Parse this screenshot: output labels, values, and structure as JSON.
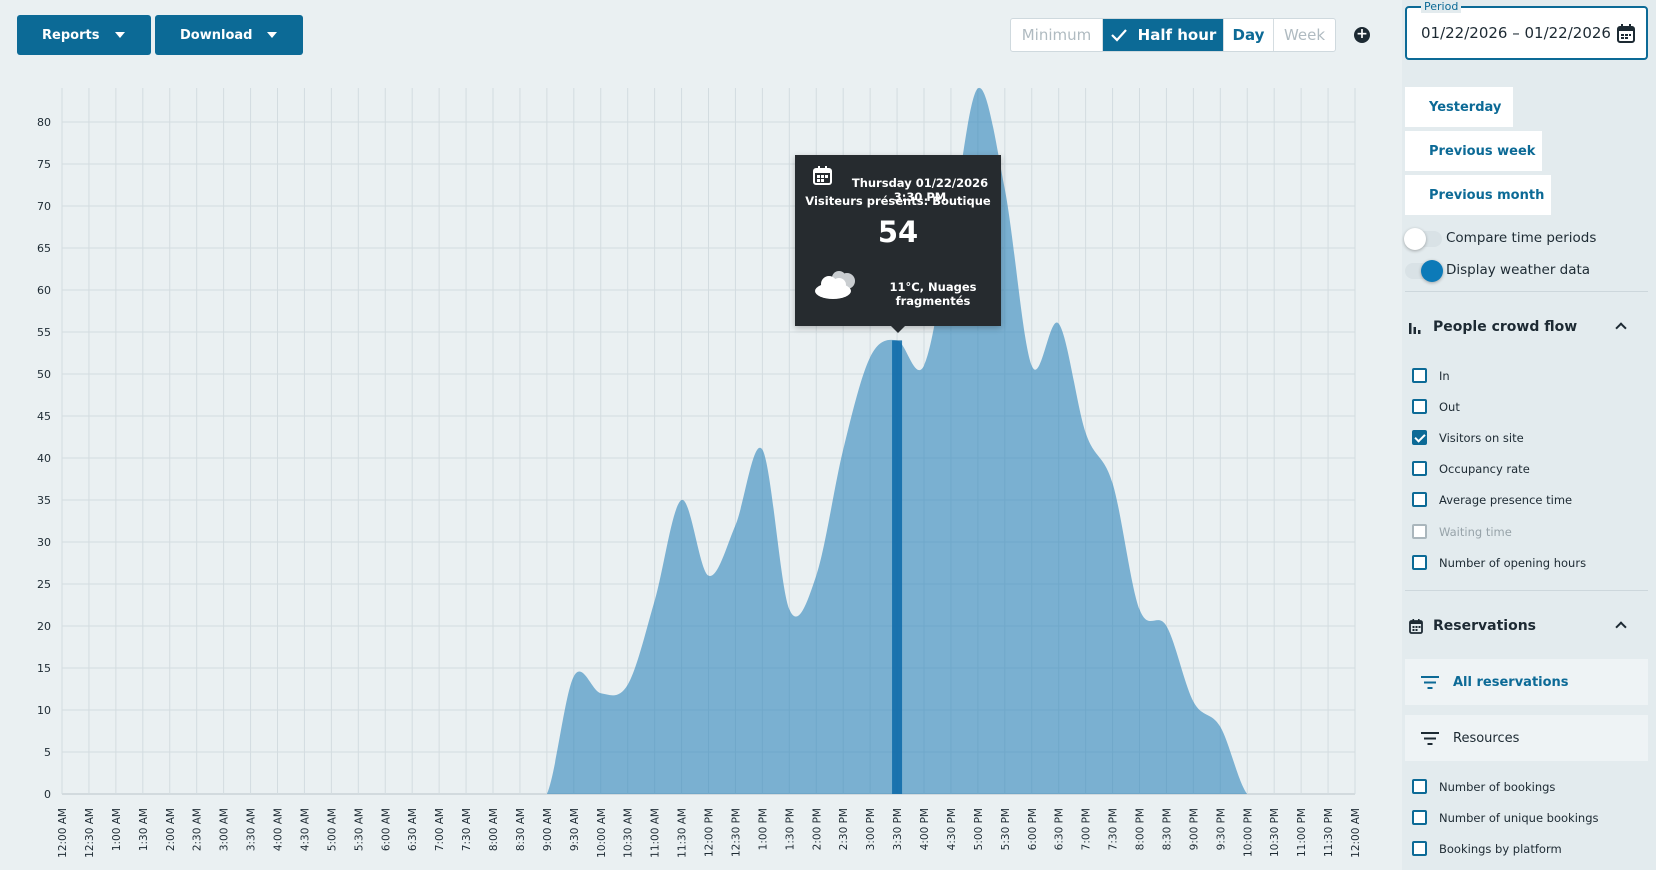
{
  "toolbar": {
    "reports_label": "Reports",
    "download_label": "Download",
    "granularity": [
      "Minimum",
      "Half hour",
      "Day",
      "Week"
    ],
    "granularity_selected": "Half hour",
    "add_icon": "plus-circle-icon"
  },
  "tooltip": {
    "date": "Thursday 01/22/2026 3:30 PM",
    "series": "Visiteurs présents: Boutique",
    "value": "54",
    "weather": "11°C, Nuages fragmentés",
    "date_icon": "calendar-icon",
    "weather_icon": "cloud-icon"
  },
  "sidebar": {
    "period_label": "Period",
    "period_value": "01/22/2026 – 01/22/2026",
    "quick_ranges": [
      "Yesterday",
      "Previous week",
      "Previous month"
    ],
    "toggles": [
      {
        "label": "Compare time periods",
        "on": false
      },
      {
        "label": "Display weather data",
        "on": true
      }
    ],
    "crowd_section": {
      "title": "People crowd flow",
      "options": [
        {
          "label": "In",
          "checked": false,
          "disabled": false
        },
        {
          "label": "Out",
          "checked": false,
          "disabled": false
        },
        {
          "label": "Visitors on site",
          "checked": true,
          "disabled": false
        },
        {
          "label": "Occupancy rate",
          "checked": false,
          "disabled": false
        },
        {
          "label": "Average presence time",
          "checked": false,
          "disabled": false
        },
        {
          "label": "Waiting time",
          "checked": false,
          "disabled": true
        },
        {
          "label": "Number of opening hours",
          "checked": false,
          "disabled": false
        }
      ]
    },
    "reservations_section": {
      "title": "Reservations",
      "filters": [
        {
          "label": "All reservations",
          "active": true
        },
        {
          "label": "Resources",
          "active": false
        }
      ],
      "options": [
        {
          "label": "Number of bookings",
          "checked": false
        },
        {
          "label": "Number of unique bookings",
          "checked": false
        },
        {
          "label": "Bookings by platform",
          "checked": false
        }
      ]
    }
  },
  "chart_data": {
    "type": "area",
    "ylim": [
      0,
      84
    ],
    "yticks": [
      0,
      5,
      10,
      15,
      20,
      25,
      30,
      35,
      40,
      45,
      50,
      55,
      60,
      65,
      70,
      75,
      80
    ],
    "x": [
      "12:00 AM",
      "12:30 AM",
      "1:00 AM",
      "1:30 AM",
      "2:00 AM",
      "2:30 AM",
      "3:00 AM",
      "3:30 AM",
      "4:00 AM",
      "4:30 AM",
      "5:00 AM",
      "5:30 AM",
      "6:00 AM",
      "6:30 AM",
      "7:00 AM",
      "7:30 AM",
      "8:00 AM",
      "8:30 AM",
      "9:00 AM",
      "9:30 AM",
      "10:00 AM",
      "10:30 AM",
      "11:00 AM",
      "11:30 AM",
      "12:00 PM",
      "12:30 PM",
      "1:00 PM",
      "1:30 PM",
      "2:00 PM",
      "2:30 PM",
      "3:00 PM",
      "3:30 PM",
      "4:00 PM",
      "4:30 PM",
      "5:00 PM",
      "5:30 PM",
      "6:00 PM",
      "6:30 PM",
      "7:00 PM",
      "7:30 PM",
      "8:00 PM",
      "8:30 PM",
      "9:00 PM",
      "9:30 PM",
      "10:00 PM",
      "10:30 PM",
      "11:00 PM",
      "11:30 PM",
      "12:00 AM"
    ],
    "values": [
      0,
      0,
      0,
      0,
      0,
      0,
      0,
      0,
      0,
      0,
      0,
      0,
      0,
      0,
      0,
      0,
      0,
      0,
      0,
      14,
      12,
      13,
      23,
      35,
      26,
      32,
      41,
      22,
      26,
      41,
      52,
      54,
      51,
      67,
      84,
      72,
      51,
      56,
      43,
      37,
      22,
      20,
      11,
      8,
      0,
      0,
      0,
      0,
      0
    ],
    "highlight_index": 31,
    "color": "#2e86bb",
    "highlight_color": "#0b68a8",
    "grid": true
  },
  "colors": {
    "primary": "#0c6a96",
    "background": "#eaf0f2",
    "tooltip_bg": "#262b2f"
  }
}
